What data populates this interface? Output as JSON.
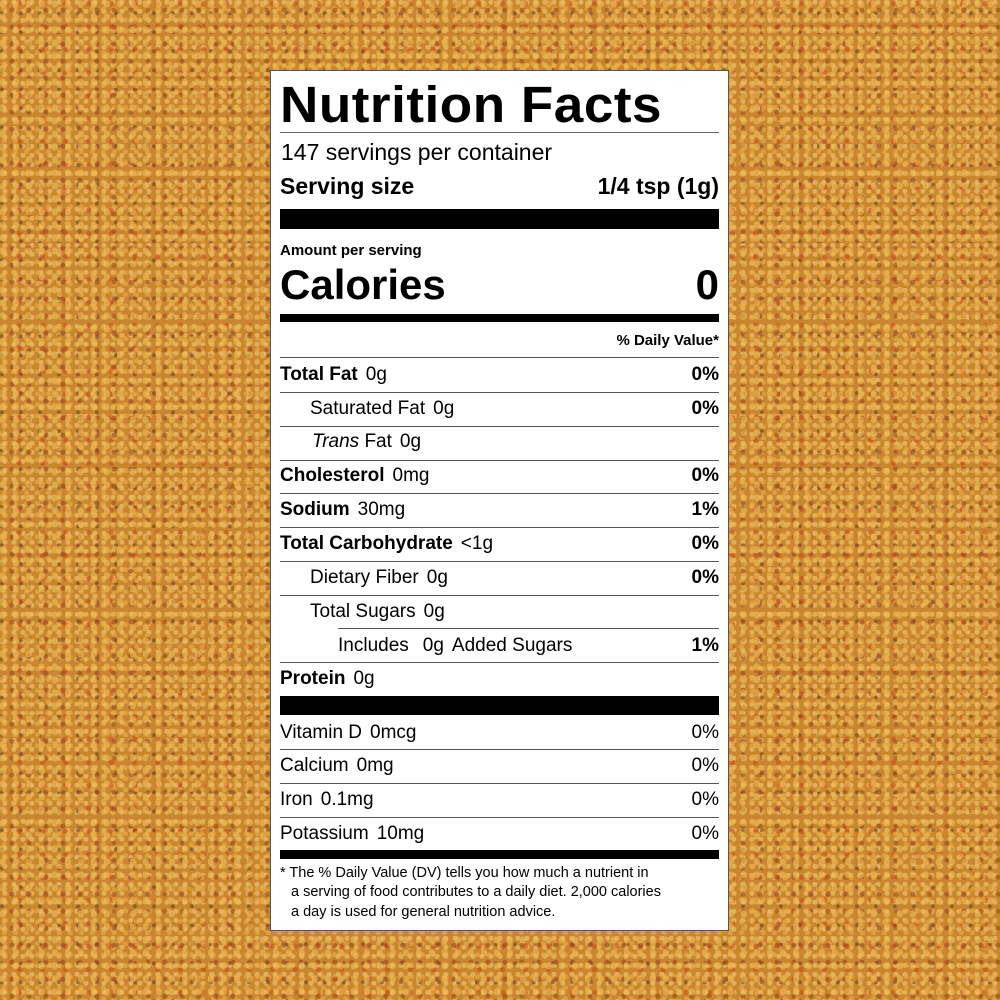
{
  "title": "Nutrition Facts",
  "servings_per_container": "147 servings per container",
  "serving_size_label": "Serving size",
  "serving_size_value": "1/4 tsp (1g)",
  "amount_per_serving": "Amount per serving",
  "calories_label": "Calories",
  "calories_value": "0",
  "daily_value_header": "% Daily Value*",
  "nutrients": [
    {
      "name": "Total Fat",
      "amount": "0g",
      "dv": "0%"
    },
    {
      "name": "Saturated Fat",
      "amount": "0g",
      "dv": "0%"
    },
    {
      "name_italic": "Trans",
      "name": "Fat",
      "amount": "0g",
      "dv": ""
    },
    {
      "name": "Cholesterol",
      "amount": "0mg",
      "dv": "0%"
    },
    {
      "name": "Sodium",
      "amount": "30mg",
      "dv": "1%"
    },
    {
      "name": "Total Carbohydrate",
      "amount": "<1g",
      "dv": "0%"
    },
    {
      "name": "Dietary Fiber",
      "amount": "0g",
      "dv": "0%"
    },
    {
      "name": "Total Sugars",
      "amount": "0g",
      "dv": ""
    },
    {
      "name": "Includes",
      "amount": "0g",
      "suffix": "Added Sugars",
      "dv": "1%"
    },
    {
      "name": "Protein",
      "amount": "0g",
      "dv": ""
    }
  ],
  "vitamins": [
    {
      "name": "Vitamin D",
      "amount": "0mcg",
      "dv": "0%"
    },
    {
      "name": "Calcium",
      "amount": "0mg",
      "dv": "0%"
    },
    {
      "name": "Iron",
      "amount": "0.1mg",
      "dv": "0%"
    },
    {
      "name": "Potassium",
      "amount": "10mg",
      "dv": "0%"
    }
  ],
  "footnote": [
    "* The % Daily Value (DV) tells you how much a nutrient in",
    "a serving of food contributes to a daily diet. 2,000 calories",
    "a day is used for general nutrition advice."
  ]
}
